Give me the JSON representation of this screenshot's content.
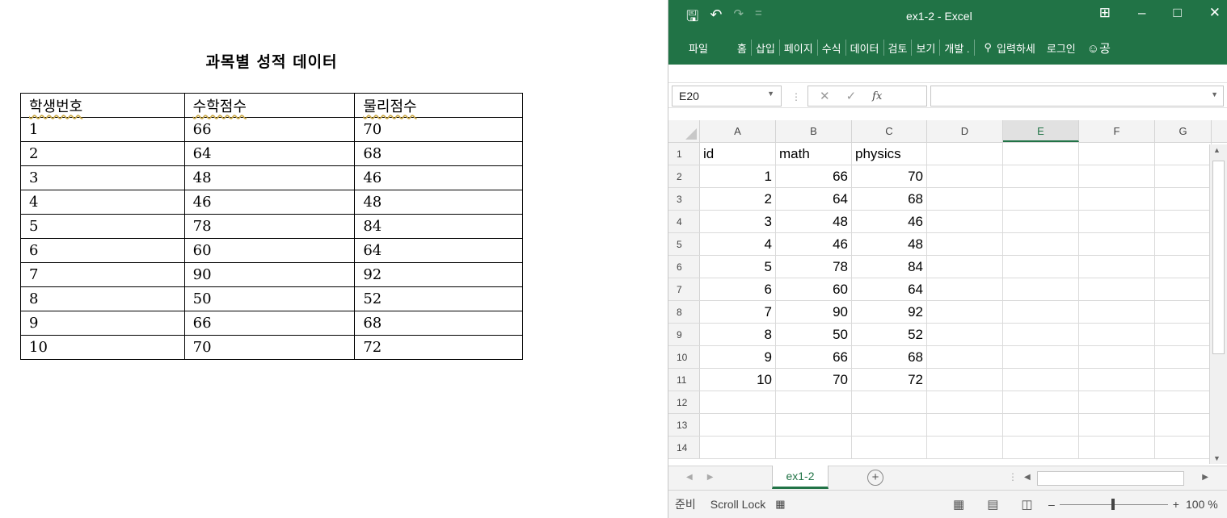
{
  "document": {
    "title": "과목별 성적 데이터",
    "headers": [
      "학생번호",
      "수학점수",
      "물리점수"
    ],
    "rows": [
      [
        "1",
        "66",
        "70"
      ],
      [
        "2",
        "64",
        "68"
      ],
      [
        "3",
        "48",
        "46"
      ],
      [
        "4",
        "46",
        "48"
      ],
      [
        "5",
        "78",
        "84"
      ],
      [
        "6",
        "60",
        "64"
      ],
      [
        "7",
        "90",
        "92"
      ],
      [
        "8",
        "50",
        "52"
      ],
      [
        "9",
        "66",
        "68"
      ],
      [
        "10",
        "70",
        "72"
      ]
    ]
  },
  "excel": {
    "window_title": "ex1-2 - Excel",
    "qat": {
      "save_icon": "save-icon",
      "undo_icon": "undo-icon",
      "redo_icon": "redo-icon",
      "customize": "="
    },
    "window_buttons": {
      "ribbon_display": "⊞",
      "minimize": "–",
      "maximize": "□",
      "close": "✕"
    },
    "ribbon_tabs": [
      "파일",
      "홈",
      "삽입",
      "페이지",
      "수식",
      "데이터",
      "검토",
      "보기",
      "개발 ."
    ],
    "ribbon_search": "입력하세",
    "ribbon_login": "로그인",
    "ribbon_share": "공",
    "name_box": "E20",
    "formula_value": "",
    "formula_fx": "fx",
    "formula_cancel": "✕",
    "formula_enter": "✓",
    "column_headers": [
      "A",
      "B",
      "C",
      "D",
      "E",
      "F",
      "G"
    ],
    "selected_column": "E",
    "rows": [
      {
        "num": "1",
        "cells": [
          "id",
          "math",
          "physics",
          "",
          "",
          "",
          ""
        ]
      },
      {
        "num": "2",
        "cells": [
          "1",
          "66",
          "70",
          "",
          "",
          "",
          ""
        ]
      },
      {
        "num": "3",
        "cells": [
          "2",
          "64",
          "68",
          "",
          "",
          "",
          ""
        ]
      },
      {
        "num": "4",
        "cells": [
          "3",
          "48",
          "46",
          "",
          "",
          "",
          ""
        ]
      },
      {
        "num": "5",
        "cells": [
          "4",
          "46",
          "48",
          "",
          "",
          "",
          ""
        ]
      },
      {
        "num": "6",
        "cells": [
          "5",
          "78",
          "84",
          "",
          "",
          "",
          ""
        ]
      },
      {
        "num": "7",
        "cells": [
          "6",
          "60",
          "64",
          "",
          "",
          "",
          ""
        ]
      },
      {
        "num": "8",
        "cells": [
          "7",
          "90",
          "92",
          "",
          "",
          "",
          ""
        ]
      },
      {
        "num": "9",
        "cells": [
          "8",
          "50",
          "52",
          "",
          "",
          "",
          ""
        ]
      },
      {
        "num": "10",
        "cells": [
          "9",
          "66",
          "68",
          "",
          "",
          "",
          ""
        ]
      },
      {
        "num": "11",
        "cells": [
          "10",
          "70",
          "72",
          "",
          "",
          "",
          ""
        ]
      },
      {
        "num": "12",
        "cells": [
          "",
          "",
          "",
          "",
          "",
          "",
          ""
        ]
      },
      {
        "num": "13",
        "cells": [
          "",
          "",
          "",
          "",
          "",
          "",
          ""
        ]
      },
      {
        "num": "14",
        "cells": [
          "",
          "",
          "",
          "",
          "",
          "",
          ""
        ]
      }
    ],
    "sheet_tab": "ex1-2",
    "add_sheet": "+",
    "status_ready": "준비",
    "status_scroll_lock": "Scroll Lock",
    "zoom": "100 %",
    "zoom_minus": "–",
    "zoom_plus": "+",
    "accent_color": "#217346"
  }
}
